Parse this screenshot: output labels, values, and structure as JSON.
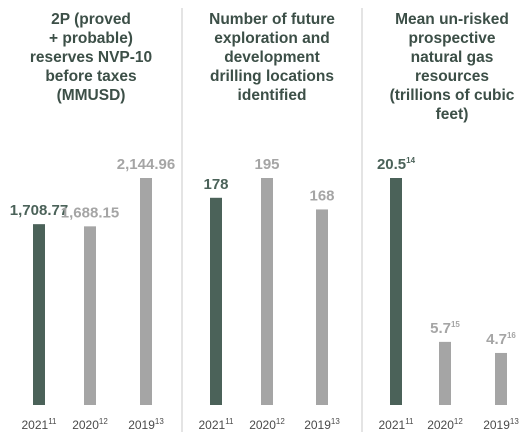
{
  "chart_data": [
    {
      "type": "bar",
      "title": [
        "2P (proved",
        "+ probable)",
        "reserves NVP-10",
        "before taxes",
        "(MMUSD)"
      ],
      "categories": [
        "2021",
        "2020",
        "2019"
      ],
      "category_notes": [
        "11",
        "12",
        "13"
      ],
      "values": [
        1708.77,
        1688.15,
        2144.96
      ],
      "value_labels": [
        "1,708.77",
        "1,688.15",
        "2,144.96"
      ],
      "colors": [
        "#4b6259",
        "#a5a5a5",
        "#a5a5a5"
      ]
    },
    {
      "type": "bar",
      "title": [
        "Number of future",
        "exploration and",
        "development",
        "drilling locations",
        "identified"
      ],
      "categories": [
        "2021",
        "2020",
        "2019"
      ],
      "category_notes": [
        "11",
        "12",
        "13"
      ],
      "values": [
        178,
        195,
        168
      ],
      "colors": [
        "#4b6259",
        "#a5a5a5",
        "#a5a5a5"
      ]
    },
    {
      "type": "bar",
      "title": [
        "Mean un-risked",
        "prospective",
        "natural gas",
        "resources",
        "(trillions of cubic",
        "feet)"
      ],
      "categories": [
        "2021",
        "2020",
        "2019"
      ],
      "category_notes": [
        "11",
        "12",
        "13"
      ],
      "values": [
        20.5,
        5.7,
        4.7
      ],
      "value_notes": [
        "14",
        "15",
        "16"
      ],
      "colors": [
        "#4b6259",
        "#a5a5a5",
        "#a5a5a5"
      ]
    }
  ]
}
